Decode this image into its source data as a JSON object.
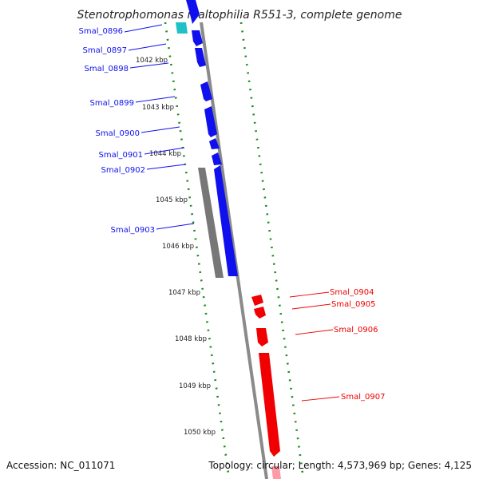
{
  "title": "Stenotrophomonas maltophilia R551-3, complete genome",
  "footer": {
    "accession": "Accession: NC_011071",
    "summary": "Topology: circular; Length: 4,573,969 bp; Genes: 4,125"
  },
  "colors": {
    "forward_strand": "#1010ee",
    "reverse_strand": "#f00000",
    "operon_gray": "#777777",
    "highlight_cyan": "#20c0c8",
    "tick_green": "#1e8a1e",
    "backbone": "#8a8a8a"
  },
  "scale_kbp": [
    "1042 kbp",
    "1043 kbp",
    "1044 kbp",
    "1045 kbp",
    "1046 kbp",
    "1047 kbp",
    "1048 kbp",
    "1049 kbp",
    "1050 kbp"
  ],
  "genes_left": [
    "Smal_0896",
    "Smal_0897",
    "Smal_0898",
    "Smal_0899",
    "Smal_0900",
    "Smal_0901",
    "Smal_0902",
    "Smal_0903"
  ],
  "genes_right": [
    "Smal_0904",
    "Smal_0905",
    "Smal_0906",
    "Smal_0907"
  ]
}
